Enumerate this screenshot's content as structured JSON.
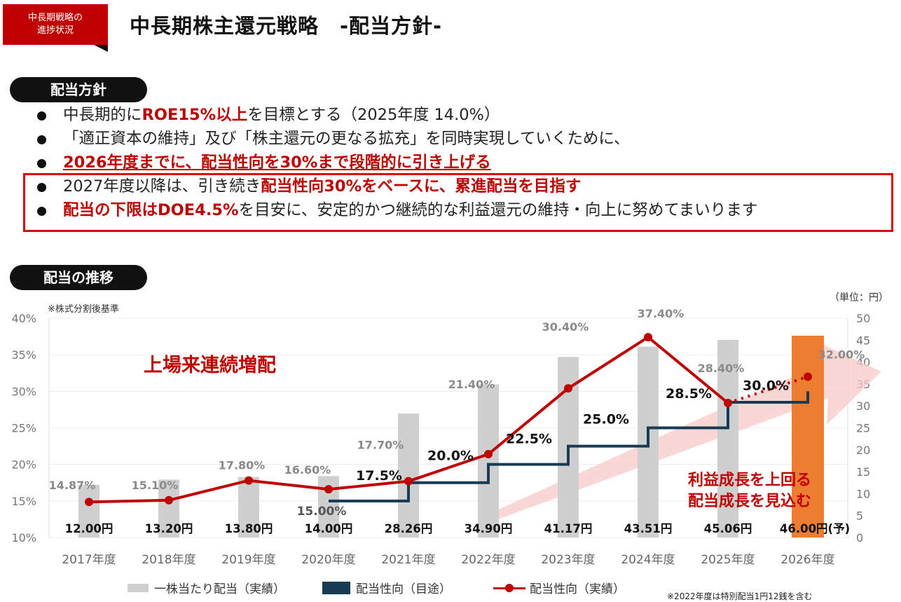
{
  "header": {
    "tag_line1": "中長期戦略の",
    "tag_line2": "進捗状況",
    "title": "中長期株主還元戦略　-配当方針-"
  },
  "policy": {
    "heading": "配当方針",
    "b1_pre": "中長期的に",
    "b1_red": "ROE15%以上",
    "b1_post": "を目標とする（2025年度 14.0%）",
    "b2": "「適正資本の維持」及び「株主還元の更なる拡充」を同時実現していくために、",
    "b3_red": "2026年度までに、配当性向を30%まで段階的に引き上げる",
    "b4_pre": "2027年度以降は、引き続き",
    "b4_red": "配当性向30%をベースに、累進配当を目指す",
    "b5_red": "配当の下限はDOE4.5%",
    "b5_post": "を目安に、安定的かつ継続的な利益還元の維持・向上に努めてまいります"
  },
  "trend": {
    "heading": "配当の推移",
    "note_top": "※株式分割後基準",
    "unit": "（単位：円）",
    "note_bottom": "※2022年度は特別配当1円12銭を含む",
    "legend_bar": "一株当たり配当（実績）",
    "legend_target": "配当性向（目途）",
    "legend_actual": "配当性向（実績）"
  },
  "colors": {
    "bar": "#cfcfcf",
    "bar_forecast": "#ed7d31",
    "target_line": "#163b52",
    "actual_line": "#c00000",
    "annotation": "#c00000"
  },
  "chart_data": {
    "type": "bar",
    "categories": [
      "2017年度",
      "2018年度",
      "2019年度",
      "2020年度",
      "2021年度",
      "2022年度",
      "2023年度",
      "2024年度",
      "2025年度",
      "2026年度"
    ],
    "series": [
      {
        "name": "一株当たり配当（実績）",
        "type": "bar",
        "axis": "right",
        "values": [
          12.0,
          13.2,
          13.8,
          14.0,
          28.26,
          34.9,
          41.17,
          43.51,
          45.06,
          46.0
        ],
        "labels": [
          "12.00円",
          "13.20円",
          "13.80円",
          "14.00円",
          "28.26円",
          "34.90円",
          "41.17円",
          "43.51円",
          "45.06円",
          "46.00円(予)"
        ]
      },
      {
        "name": "配当性向（実績）",
        "type": "line",
        "axis": "left",
        "values": [
          14.87,
          15.1,
          17.8,
          16.6,
          17.7,
          21.4,
          30.4,
          37.4,
          28.4,
          32.0
        ],
        "labels": [
          "14.87%",
          "15.10%",
          "17.80%",
          "16.60%",
          "17.70%",
          "21.40%",
          "30.40%",
          "37.40%",
          "28.40%",
          "32.00%"
        ]
      },
      {
        "name": "配当性向（目途）",
        "type": "step",
        "axis": "left",
        "values": [
          null,
          null,
          null,
          15.0,
          17.5,
          20.0,
          22.5,
          25.0,
          28.5,
          30.0
        ],
        "labels": [
          "",
          "",
          "",
          "15.00%",
          "17.5%",
          "20.0%",
          "22.5%",
          "25.0%",
          "28.5%",
          "30.0%"
        ]
      }
    ],
    "y_left": {
      "ticks": [
        "10%",
        "15%",
        "20%",
        "25%",
        "30%",
        "35%",
        "40%"
      ],
      "ylim": [
        10,
        40
      ]
    },
    "y_right": {
      "ticks": [
        "0",
        "5",
        "10",
        "15",
        "20",
        "25",
        "30",
        "35",
        "40",
        "45",
        "50"
      ],
      "ylim": [
        0,
        50
      ]
    },
    "annotations": {
      "growth": "上場来連続増配",
      "outlook_line1": "利益成長を上回る",
      "outlook_line2": "配当成長を見込む"
    },
    "legend_position": "bottom"
  }
}
